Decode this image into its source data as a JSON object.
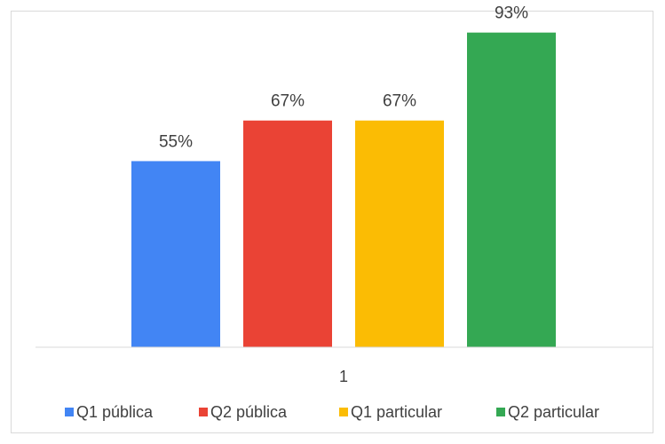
{
  "chart_data": {
    "type": "bar",
    "categories": [
      "1"
    ],
    "series": [
      {
        "name": "Q1 pública",
        "values": [
          55
        ],
        "label": "55%",
        "color": "#4285f4"
      },
      {
        "name": "Q2 pública",
        "values": [
          67
        ],
        "label": "67%",
        "color": "#ea4335"
      },
      {
        "name": "Q1 particular",
        "values": [
          67
        ],
        "label": "67%",
        "color": "#fbbc04"
      },
      {
        "name": "Q2 particular",
        "values": [
          93
        ],
        "label": "93%",
        "color": "#34a853"
      }
    ],
    "ylim": [
      0,
      100
    ],
    "grid": false,
    "legend_position": "bottom",
    "title": "",
    "xlabel": "",
    "ylabel": ""
  }
}
